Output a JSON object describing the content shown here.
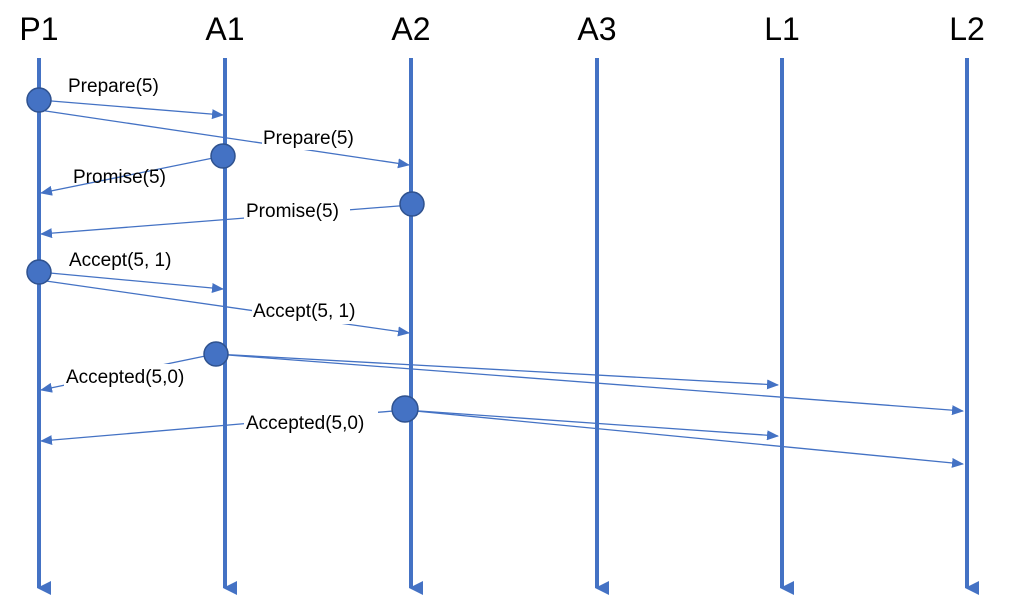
{
  "diagram": {
    "title": "",
    "colors": {
      "lifeline": "#4472C4",
      "message": "#4472C4",
      "node_fill": "#4472C4",
      "node_stroke": "#2F528F",
      "text": "#000000"
    },
    "lanes": [
      {
        "id": "P1",
        "label": "P1"
      },
      {
        "id": "A1",
        "label": "A1"
      },
      {
        "id": "A2",
        "label": "A2"
      },
      {
        "id": "A3",
        "label": "A3"
      },
      {
        "id": "L1",
        "label": "L1"
      },
      {
        "id": "L2",
        "label": "L2"
      }
    ],
    "events": [
      {
        "id": "p1-prepare",
        "lane": "P1",
        "step": 1
      },
      {
        "id": "a1-promise",
        "lane": "A1",
        "step": 2
      },
      {
        "id": "a2-promise",
        "lane": "A2",
        "step": 3
      },
      {
        "id": "p1-accept",
        "lane": "P1",
        "step": 4
      },
      {
        "id": "a1-accepted",
        "lane": "A1",
        "step": 5
      },
      {
        "id": "a2-accepted",
        "lane": "A2",
        "step": 6
      }
    ],
    "messages": [
      {
        "from": "P1",
        "to": "A1",
        "label": "Prepare(5)"
      },
      {
        "from": "P1",
        "to": "A2",
        "label": "Prepare(5)"
      },
      {
        "from": "A1",
        "to": "P1",
        "label": "Promise(5)"
      },
      {
        "from": "A2",
        "to": "P1",
        "label": "Promise(5)"
      },
      {
        "from": "P1",
        "to": "A1",
        "label": "Accept(5, 1)"
      },
      {
        "from": "P1",
        "to": "A2",
        "label": "Accept(5, 1)"
      },
      {
        "from": "A1",
        "to": "P1",
        "label": "Accepted(5,0)"
      },
      {
        "from": "A1",
        "to": "L1",
        "label": ""
      },
      {
        "from": "A1",
        "to": "L2",
        "label": ""
      },
      {
        "from": "A2",
        "to": "P1",
        "label": "Accepted(5,0)"
      },
      {
        "from": "A2",
        "to": "L1",
        "label": ""
      },
      {
        "from": "A2",
        "to": "L2",
        "label": ""
      }
    ]
  }
}
